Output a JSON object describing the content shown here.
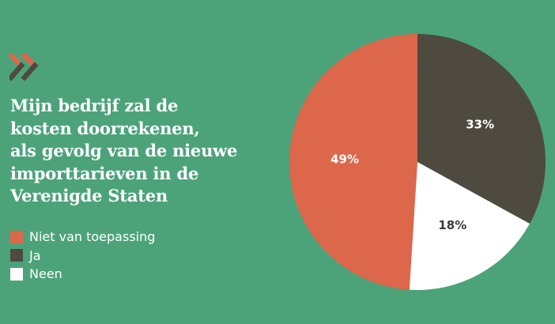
{
  "colors": {
    "background": "#4ca37a",
    "accent": "#dd674b",
    "dark": "#4e4a40",
    "white": "#ffffff"
  },
  "logo": {
    "icon": "double-chevron-right-icon"
  },
  "title_lines": [
    "Mijn bedrijf zal de",
    "kosten doorrekenen,",
    "als gevolg van de nieuwe",
    "importtarieven in de",
    "Verenigde Staten"
  ],
  "chart_data": {
    "type": "pie",
    "title": "Mijn bedrijf zal de kosten doorrekenen, als gevolg van de nieuwe importtarieven in de Verenigde Staten",
    "legend_position": "left",
    "slices": [
      {
        "label": "Ja",
        "value": 33,
        "display": "33%",
        "color": "#4e4a40",
        "label_color": "#ffffff"
      },
      {
        "label": "Neen",
        "value": 18,
        "display": "18%",
        "color": "#ffffff",
        "label_color": "#3a3a3a"
      },
      {
        "label": "Niet van toepassing",
        "value": 49,
        "display": "49%",
        "color": "#dd674b",
        "label_color": "#ffffff"
      }
    ],
    "legend": [
      {
        "label": "Niet van toepassing",
        "color": "#dd674b"
      },
      {
        "label": "Ja",
        "color": "#4e4a40"
      },
      {
        "label": "Neen",
        "color": "#ffffff"
      }
    ]
  }
}
